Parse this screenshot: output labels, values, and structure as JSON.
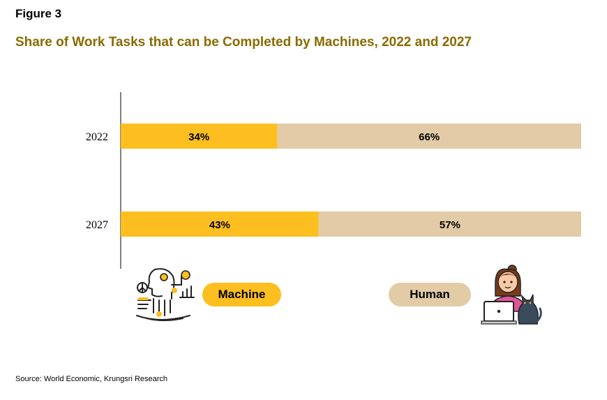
{
  "figure_label": "Figure 3",
  "source": "Source: World Economic, Krungsri Research",
  "colors": {
    "machine": "#FDBE1F",
    "human": "#E2CBA6",
    "title": "#8A6A00"
  },
  "icons": {
    "machine": "robot-head-icon",
    "human": "woman-laptop-cat-icon"
  },
  "chart_data": {
    "type": "bar",
    "orientation": "horizontal",
    "stacked": true,
    "title": "Share of Work Tasks that can be Completed by Machines, 2022 and 2027",
    "categories": [
      "2022",
      "2027"
    ],
    "series": [
      {
        "name": "Machine",
        "values": [
          34,
          43
        ],
        "labels": [
          "34%",
          "43%"
        ]
      },
      {
        "name": "Human",
        "values": [
          66,
          57
        ],
        "labels": [
          "66%",
          "57%"
        ]
      }
    ],
    "xlim": [
      0,
      100
    ],
    "unit": "%",
    "grid": false,
    "legend_placement": "bottom"
  }
}
